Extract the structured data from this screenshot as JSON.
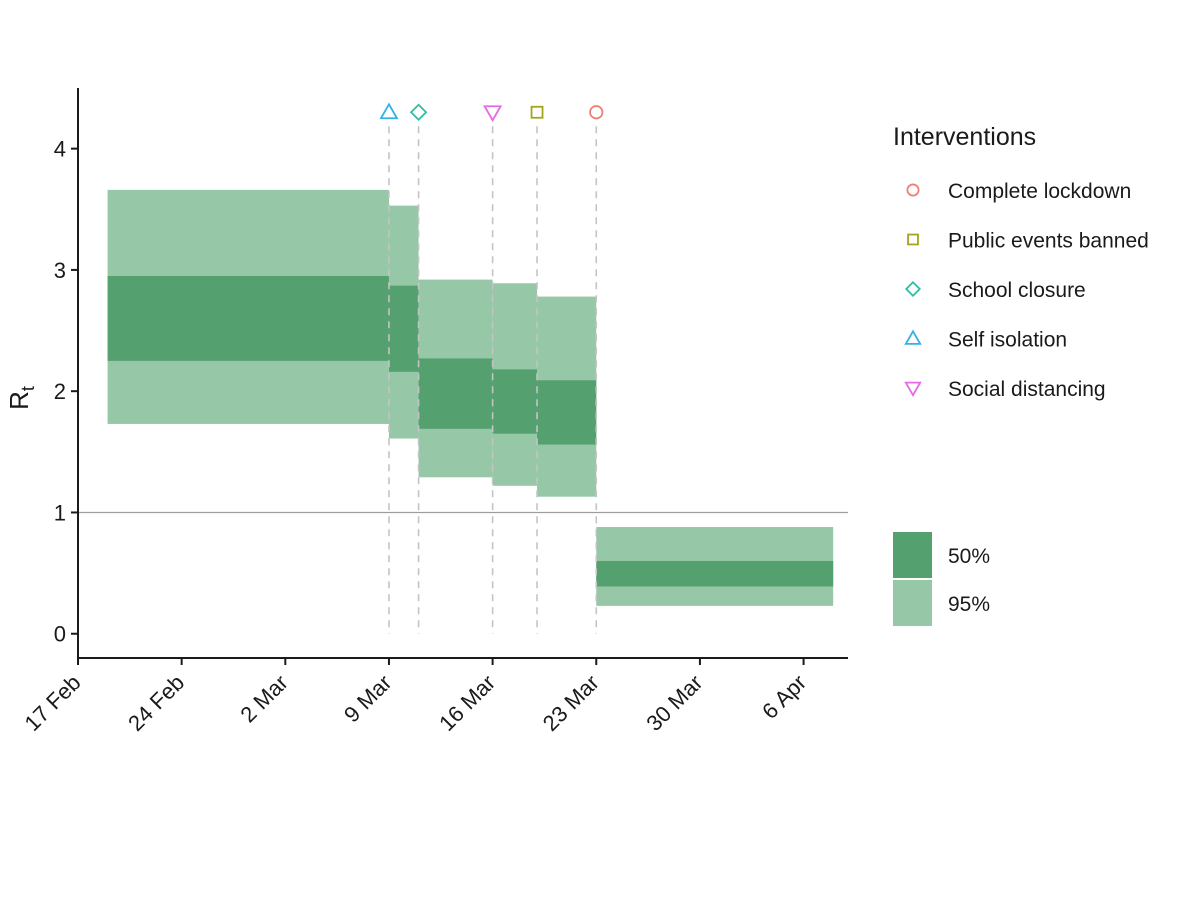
{
  "chart_data": {
    "type": "area",
    "x_axis": {
      "ticks": [
        "17 Feb",
        "24 Feb",
        "2 Mar",
        "9 Mar",
        "16 Mar",
        "23 Mar",
        "30 Mar",
        "6 Apr"
      ],
      "tick_dates": [
        "2020-02-17",
        "2020-02-24",
        "2020-03-02",
        "2020-03-09",
        "2020-03-16",
        "2020-03-23",
        "2020-03-30",
        "2020-04-06"
      ],
      "range": [
        "2020-02-17",
        "2020-04-09"
      ]
    },
    "y_axis": {
      "label": "R",
      "label_subscript": "t",
      "ticks": [
        0,
        1,
        2,
        3,
        4
      ],
      "range": [
        -0.2,
        4.5
      ]
    },
    "reference_line": {
      "y": 1,
      "color": "#9e9e9e"
    },
    "segments": [
      {
        "start": "2020-02-19",
        "end": "2020-03-09",
        "q50": [
          2.25,
          2.95
        ],
        "q95": [
          1.73,
          3.66
        ]
      },
      {
        "start": "2020-03-09",
        "end": "2020-03-11",
        "q50": [
          2.16,
          2.87
        ],
        "q95": [
          1.61,
          3.53
        ]
      },
      {
        "start": "2020-03-11",
        "end": "2020-03-16",
        "q50": [
          1.69,
          2.27
        ],
        "q95": [
          1.29,
          2.92
        ]
      },
      {
        "start": "2020-03-16",
        "end": "2020-03-19",
        "q50": [
          1.65,
          2.18
        ],
        "q95": [
          1.22,
          2.89
        ]
      },
      {
        "start": "2020-03-19",
        "end": "2020-03-23",
        "q50": [
          1.56,
          2.09
        ],
        "q95": [
          1.13,
          2.78
        ]
      },
      {
        "start": "2020-03-23",
        "end": "2020-04-08",
        "q50": [
          0.39,
          0.6
        ],
        "q95": [
          0.23,
          0.88
        ]
      }
    ],
    "interventions": [
      {
        "name": "Self isolation",
        "date": "2020-03-09",
        "shape": "triangle-up",
        "color": "#32b2e6"
      },
      {
        "name": "School closure",
        "date": "2020-03-11",
        "shape": "diamond",
        "color": "#2fbfa0"
      },
      {
        "name": "Social distancing",
        "date": "2020-03-16",
        "shape": "triangle-down",
        "color": "#e46ae8"
      },
      {
        "name": "Public events banned",
        "date": "2020-03-19",
        "shape": "square",
        "color": "#a3a51d"
      },
      {
        "name": "Complete lockdown",
        "date": "2020-03-23",
        "shape": "circle",
        "color": "#f08077"
      }
    ]
  },
  "legend_interventions": {
    "title": "Interventions",
    "items": [
      {
        "label": "Complete lockdown",
        "shape": "circle",
        "color": "#f08077"
      },
      {
        "label": "Public events banned",
        "shape": "square",
        "color": "#a3a51d"
      },
      {
        "label": "School closure",
        "shape": "diamond",
        "color": "#2fbfa0"
      },
      {
        "label": "Self isolation",
        "shape": "triangle-up",
        "color": "#32b2e6"
      },
      {
        "label": "Social distancing",
        "shape": "triangle-down",
        "color": "#e46ae8"
      }
    ]
  },
  "legend_intervals": {
    "items": [
      {
        "label": "50%",
        "color": "#54a06f"
      },
      {
        "label": "95%",
        "color": "#96c7a6"
      }
    ]
  },
  "colors": {
    "band_50": "#54a06f",
    "band_95": "#96c7a6",
    "axis": "#1a1a1a",
    "dashed_line": "#c4c4c4"
  }
}
